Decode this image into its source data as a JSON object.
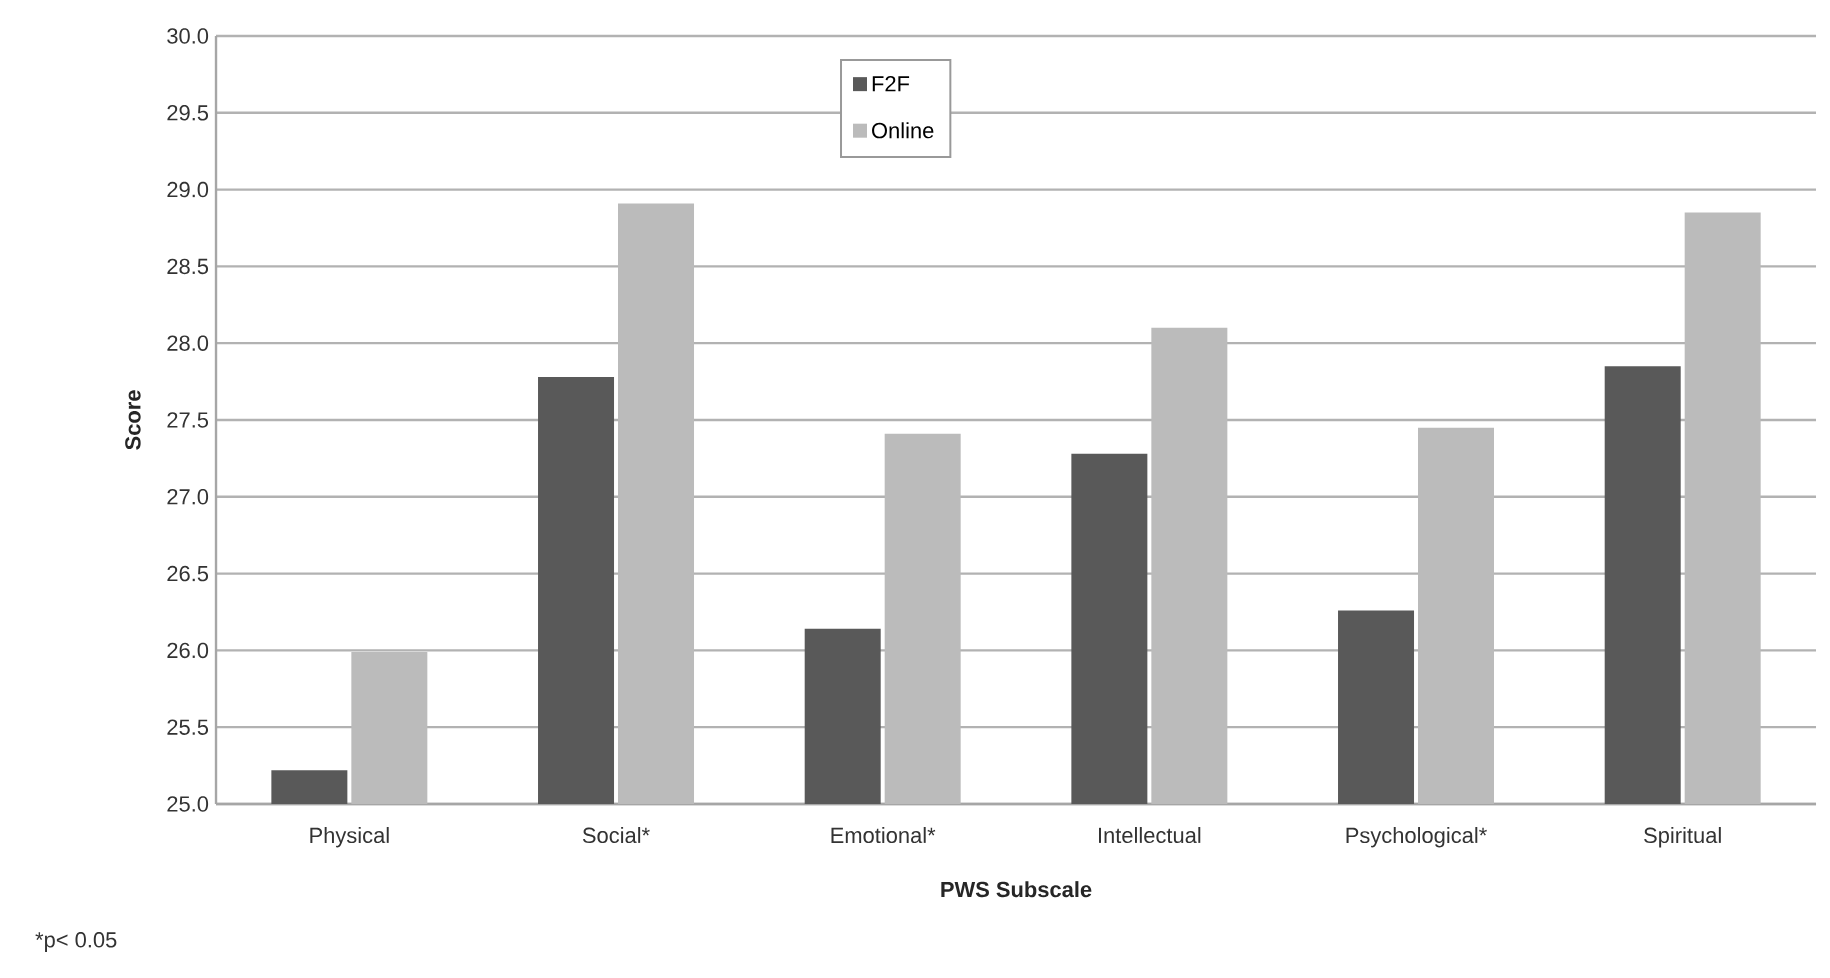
{
  "chart_data": {
    "type": "bar",
    "xlabel": "PWS Subscale",
    "ylabel": "Score",
    "categories": [
      "Physical",
      "Social*",
      "Emotional*",
      "Intellectual",
      "Psychological*",
      "Spiritual"
    ],
    "series": [
      {
        "name": "F2F",
        "color": "#595959",
        "values": [
          25.22,
          27.78,
          26.14,
          27.28,
          26.26,
          27.85
        ]
      },
      {
        "name": "Online",
        "color": "#bbbbbb",
        "values": [
          25.99,
          28.91,
          27.41,
          28.1,
          27.45,
          28.85
        ]
      }
    ],
    "ylim": [
      25,
      30
    ],
    "yticks": [
      {
        "value": 25,
        "label": "25.0"
      },
      {
        "value": 25.5,
        "label": "25.5"
      },
      {
        "value": 26,
        "label": "26.0"
      },
      {
        "value": 26.5,
        "label": "26.5"
      },
      {
        "value": 27,
        "label": "27.0"
      },
      {
        "value": 27.5,
        "label": "27.5"
      },
      {
        "value": 28,
        "label": "28.0"
      },
      {
        "value": 28.5,
        "label": "28.5"
      },
      {
        "value": 29,
        "label": "29.0"
      },
      {
        "value": 29.5,
        "label": "29.5"
      },
      {
        "value": 30,
        "label": "30.0"
      }
    ],
    "grid": "y",
    "legend": "top",
    "annotations": [
      "*p< 0.05"
    ]
  }
}
